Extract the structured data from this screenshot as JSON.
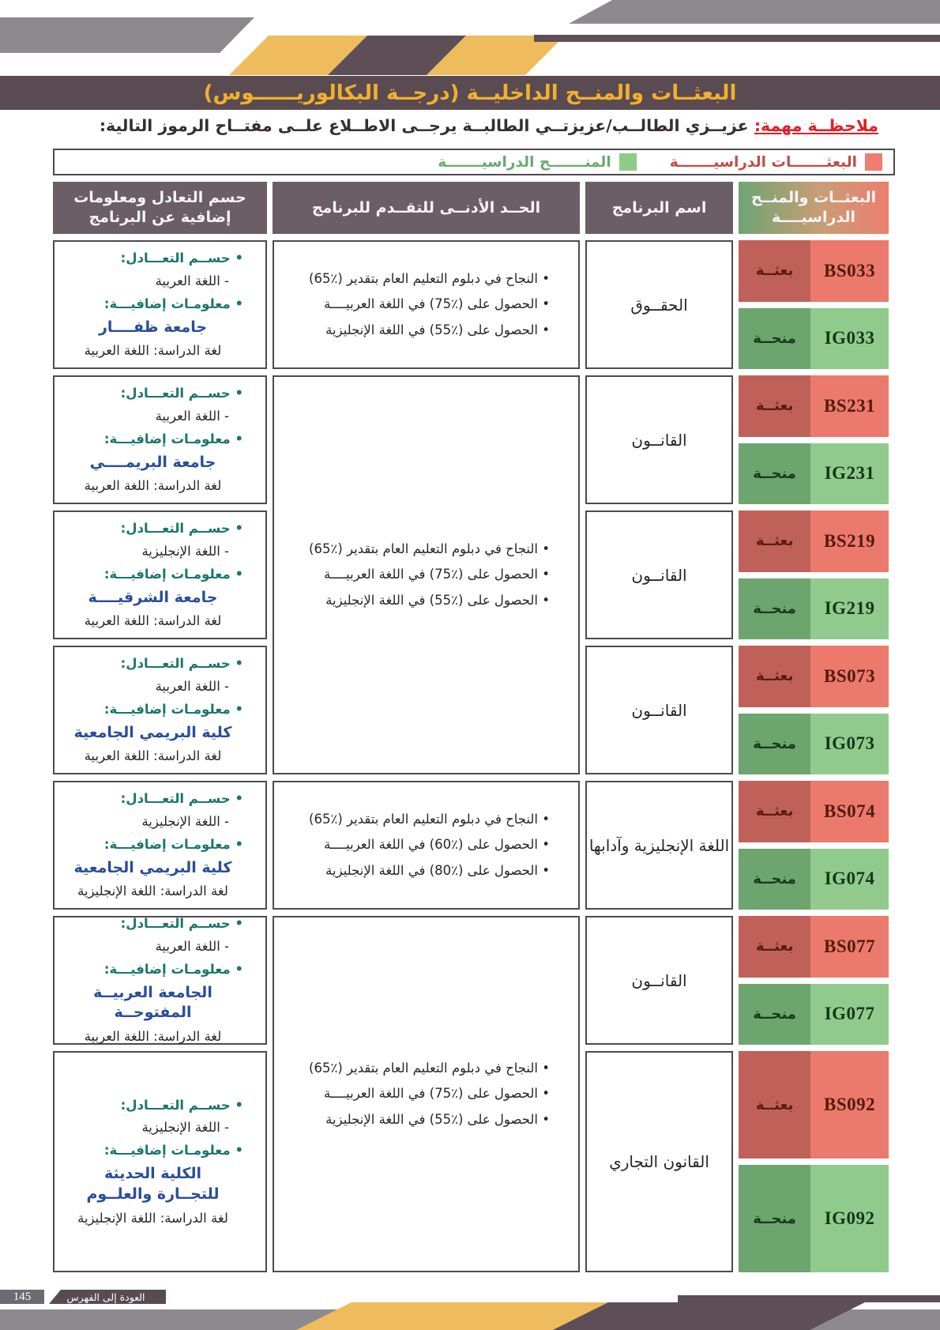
{
  "page": {
    "title": "البعثــات والمنــح الداخليــة (درجــة البكالوريــــــوس)",
    "note_label": "ملاحظــة مهمة:",
    "note_text": "عزيــزي الطالــب/عزيزتــي الطالبــة يرجــى الاطــلاع علــى مفتــاح الرموز التالية:"
  },
  "legend": {
    "scholarships_label": "البعثـــــــات الدراسيـــــــة",
    "grants_label": "المنـــــــح الدراسيـــــــة"
  },
  "table": {
    "headers": {
      "codes": "البعثــات والمنــح\nالدراسيــــة",
      "program": "اسم البرنامج",
      "requirements": "الحــد الأدنــى للتقــدم للبرنامج",
      "tiebreak": "حسم التعادل ومعلومات\nإضافية عن البرنامج"
    },
    "scholarship_label": "بعثــة",
    "grant_label": "منحــة",
    "tiebreak_heading1": "• حســم التعـــادل:",
    "tiebreak_heading2": "• معلومـات إضافيـــة:",
    "rows": [
      {
        "bs": "BS033",
        "ig": "IG033",
        "program": "الحقــوق",
        "req": [
          "• النجاح في دبلوم التعليم العام بتقدير (٪65)",
          "• الحصول على (٪75) في اللغة العربيــــة",
          "• الحصول على (٪55) في اللغة الإنجليزية"
        ],
        "tiebreak_lang": "- اللغة العربية",
        "university": "جامعة ظفــــار",
        "study_language": "لغة الدراسة: اللغة العربية"
      },
      {
        "bs": "BS231",
        "ig": "IG231",
        "program": "القانــون",
        "req": [
          "• النجاح في دبلوم التعليم العام بتقدير (٪65)",
          "• الحصول على (٪75) في اللغة العربيــــة",
          "• الحصول على (٪55) في اللغة الإنجليزية"
        ],
        "tiebreak_lang": "- اللغة العربية",
        "university": "جامعة البريمــــي",
        "study_language": "لغة الدراسة: اللغة العربية"
      },
      {
        "bs": "BS219",
        "ig": "IG219",
        "program": "القانــون",
        "tiebreak_lang": "- اللغة الإنجليزية",
        "university": "جامعة الشرقيــــة",
        "study_language": "لغة الدراسة: اللغة العربية"
      },
      {
        "bs": "BS073",
        "ig": "IG073",
        "program": "القانــون",
        "tiebreak_lang": "- اللغة العربية",
        "university": "كلية البريمي الجامعية",
        "study_language": "لغة الدراسة: اللغة العربية"
      },
      {
        "bs": "BS074",
        "ig": "IG074",
        "program": "اللغة الإنجليزية وآدابها",
        "req": [
          "• النجاح في دبلوم التعليم العام بتقدير (٪65)",
          "• الحصول على (٪60) في اللغة العربيــــة",
          "• الحصول على (٪80) في اللغة الإنجليزية"
        ],
        "tiebreak_lang": "- اللغة الإنجليزية",
        "university": "كلية البريمي الجامعية",
        "study_language": "لغة الدراسة: اللغة الإنجليزية"
      },
      {
        "bs": "BS077",
        "ig": "IG077",
        "program": "القانــون",
        "req": [
          "• النجاح في دبلوم التعليم العام بتقدير (٪65)",
          "• الحصول على (٪75) في اللغة العربيــــة",
          "• الحصول على (٪55) في اللغة الإنجليزية"
        ],
        "tiebreak_lang": "- اللغة العربية",
        "university": "الجامعة العربيــة المفتوحــة",
        "study_language": "لغة الدراسة: اللغة العربية"
      },
      {
        "bs": "BS092",
        "ig": "IG092",
        "program": "القانون التجاري",
        "tiebreak_lang": "- اللغة الإنجليزية",
        "university": "الكلية الحديثة\nللتجــارة والعلــوم",
        "study_language": "لغة الدراسة: اللغة الإنجليزية"
      }
    ]
  },
  "footer": {
    "page_number": "145",
    "back_to_index_label": "العودة إلى الفهرس"
  },
  "colors": {
    "scholarship_red": "#ec7a6c",
    "scholarship_red_dark": "#c06159",
    "grant_green": "#90cb8d",
    "grant_green_dark": "#6ca56e",
    "accent_gold": "#eebc5d",
    "header_purple": "#5a4b52",
    "table_header_purple": "#6b5e66"
  }
}
